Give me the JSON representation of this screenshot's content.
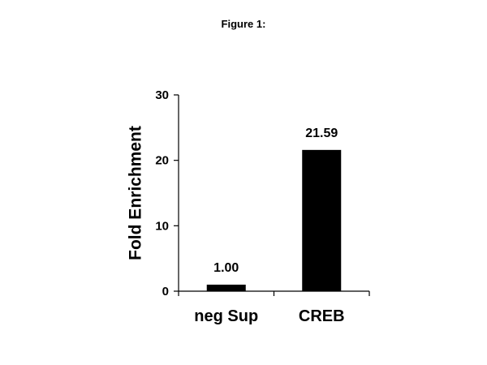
{
  "figure_label": "Figure 1:",
  "chart_data": {
    "type": "bar",
    "categories": [
      "neg Sup",
      "CREB"
    ],
    "values": [
      1.0,
      21.59
    ],
    "data_labels": [
      "1.00",
      "21.59"
    ],
    "title": "",
    "xlabel": "",
    "ylabel": "Fold Enrichment",
    "ylim": [
      0,
      30
    ],
    "yticks": [
      0,
      10,
      20,
      30
    ],
    "grid": false,
    "legend": "none",
    "bar_color": "#000000",
    "axis_color": "#000000"
  }
}
